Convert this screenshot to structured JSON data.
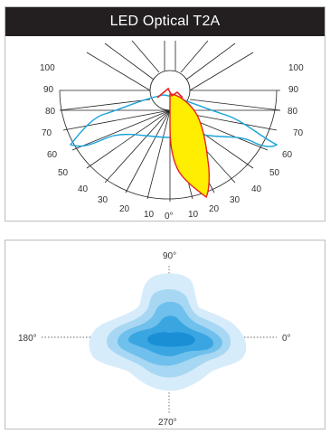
{
  "top_panel": {
    "title": "LED Optical T2A",
    "polar": {
      "left_labels": [
        "100",
        "90",
        "80",
        "70",
        "60",
        "50",
        "40",
        "30",
        "20",
        "10"
      ],
      "right_labels": [
        "100",
        "90",
        "80",
        "70",
        "60",
        "50",
        "40",
        "30",
        "20",
        "10"
      ],
      "center_label": "0°",
      "curve_colors": {
        "red_curve": "#e8251f",
        "yellow_fill": "#ffee00",
        "blue_curve": "#1aa3d9",
        "grid": "#222222"
      }
    }
  },
  "bottom_panel": {
    "labels": {
      "top": "90°",
      "left": "180°",
      "right": "0°",
      "bottom": "270°"
    },
    "iso_colors": [
      "#d6ecfa",
      "#a7d7f3",
      "#6fc0ec",
      "#3aa6e1",
      "#1b8fd6"
    ]
  }
}
